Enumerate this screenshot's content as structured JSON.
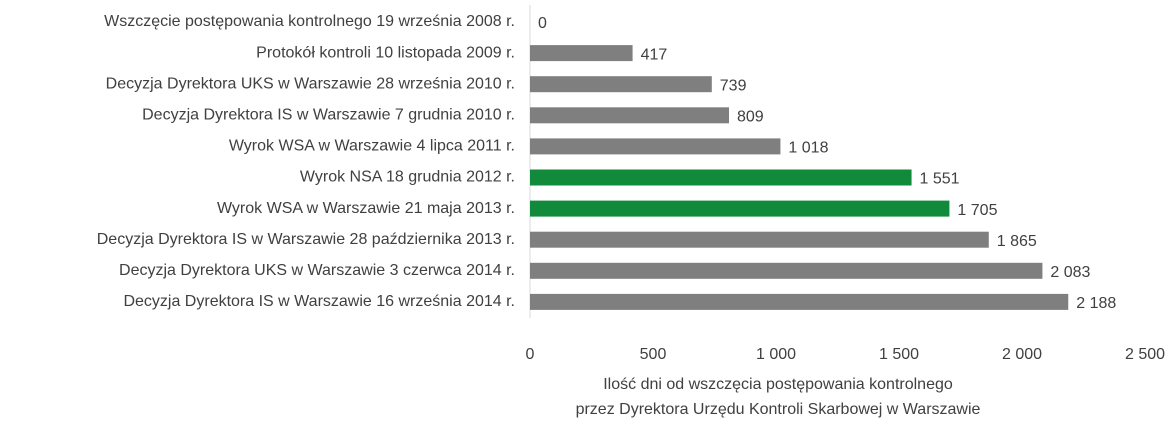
{
  "chart_data": {
    "type": "bar",
    "orientation": "horizontal",
    "categories": [
      "Wszczęcie postępowania kontrolnego 19 września 2008 r.",
      "Protokół kontroli 10 listopada 2009 r.",
      "Decyzja Dyrektora UKS w Warszawie 28 września 2010 r.",
      "Decyzja Dyrektora IS w Warszawie 7 grudnia 2010 r.",
      "Wyrok WSA w Warszawie 4 lipca 2011 r.",
      "Wyrok NSA 18 grudnia 2012 r.",
      "Wyrok WSA w Warszawie 21 maja 2013 r.",
      "Decyzja Dyrektora IS w Warszawie 28 października 2013 r.",
      "Decyzja Dyrektora UKS w Warszawie 3 czerwca 2014 r.",
      "Decyzja Dyrektora IS w Warszawie 16 września 2014 r."
    ],
    "values": [
      0,
      417,
      739,
      809,
      1018,
      1551,
      1705,
      1865,
      2083,
      2188
    ],
    "value_labels": [
      "0",
      "417",
      "739",
      "809",
      "1 018",
      "1 551",
      "1 705",
      "1 865",
      "2 083",
      "2 188"
    ],
    "colors": [
      "#7f7f7f",
      "#7f7f7f",
      "#7f7f7f",
      "#7f7f7f",
      "#7f7f7f",
      "#118a3c",
      "#118a3c",
      "#7f7f7f",
      "#7f7f7f",
      "#7f7f7f"
    ],
    "xlim": [
      0,
      2500
    ],
    "xticks": [
      0,
      500,
      {
        "value": 1000,
        "label": "1 000"
      },
      {
        "value": 1500,
        "label": "1 500"
      },
      {
        "value": 2000,
        "label": "2 000"
      },
      {
        "value": 2500,
        "label": "2 500"
      }
    ],
    "xlabel": [
      "Ilość dni od wszczęcia postępowania kontrolnego",
      "przez Dyrektora Urzędu Kontroli Skarbowej w Warszawie"
    ],
    "grid": false
  }
}
